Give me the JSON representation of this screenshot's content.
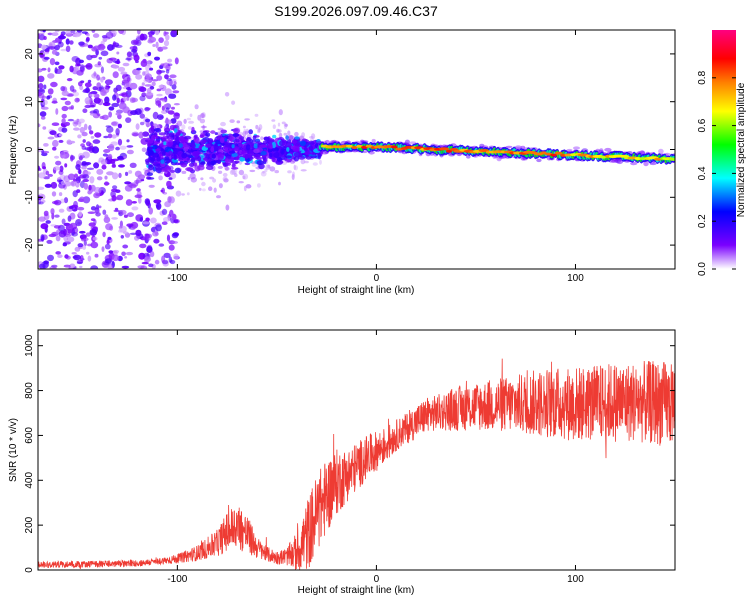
{
  "title": "S199.2026.097.09.46.C37",
  "chart_data": [
    {
      "type": "heatmap",
      "title": "S199.2026.097.09.46.C37",
      "xlabel": "Height of straight line (km)",
      "ylabel": "Frequency (Hz)",
      "xlim": [
        -170,
        150
      ],
      "ylim": [
        -25,
        25
      ],
      "xticks": [
        -100,
        0,
        100
      ],
      "xtick_labels": [
        "-100",
        "0",
        "100"
      ],
      "yticks": [
        -20,
        -10,
        0,
        10,
        20
      ],
      "ytick_labels": [
        "-20",
        "-10",
        "0",
        "10",
        "20"
      ],
      "colorbar": {
        "label": "Normalized spectral amplitude",
        "range": [
          0,
          1
        ],
        "ticks": [
          0,
          0.2,
          0.4,
          0.6,
          0.8
        ],
        "tick_labels": [
          "0.0",
          "0.2",
          "0.4",
          "0.6",
          "0.8"
        ],
        "colormap": "rainbow (white-violet-blue-cyan-green-yellow-orange-red-magenta)"
      },
      "features": [
        {
          "x_range": [
            -170,
            -100
          ],
          "description": "broadband noise spread over full frequency range",
          "amplitude": 0.1
        },
        {
          "x_range": [
            -115,
            -28
          ],
          "description": "energy concentrating toward 0 Hz, spread narrowing",
          "amplitude": 0.2
        },
        {
          "x_range": [
            -28,
            150
          ],
          "description": "narrow tone near 0 Hz drifting to about -2 Hz",
          "amplitude_peak": 0.85
        }
      ]
    },
    {
      "type": "line",
      "title": "",
      "xlabel": "Height of straight line (km)",
      "ylabel": "SNR (10 * v/v)",
      "xlim": [
        -170,
        150
      ],
      "ylim": [
        0,
        1070
      ],
      "xticks": [
        -100,
        0,
        100
      ],
      "xtick_labels": [
        "-100",
        "0",
        "100"
      ],
      "yticks": [
        0,
        200,
        400,
        600,
        800,
        1000
      ],
      "ytick_labels": [
        "0",
        "200",
        "400",
        "600",
        "800",
        "1000"
      ],
      "color": "#ee3b33",
      "series": [
        {
          "name": "SNR",
          "x": [
            -170,
            -160,
            -150,
            -140,
            -130,
            -120,
            -110,
            -100,
            -90,
            -80,
            -75,
            -70,
            -65,
            -60,
            -55,
            -50,
            -45,
            -40,
            -35,
            -30,
            -25,
            -20,
            -15,
            -10,
            -5,
            0,
            5,
            10,
            15,
            20,
            25,
            30,
            40,
            50,
            60,
            70,
            80,
            90,
            100,
            110,
            120,
            130,
            140,
            150
          ],
          "y": [
            25,
            25,
            26,
            27,
            28,
            30,
            38,
            50,
            75,
            120,
            170,
            200,
            160,
            100,
            70,
            55,
            60,
            80,
            150,
            250,
            330,
            390,
            420,
            460,
            500,
            530,
            560,
            600,
            630,
            660,
            690,
            700,
            720,
            730,
            735,
            740,
            745,
            745,
            740,
            745,
            750,
            750,
            745,
            740
          ],
          "noise_amplitude": [
            15,
            15,
            15,
            15,
            15,
            15,
            15,
            20,
            35,
            60,
            90,
            110,
            90,
            50,
            35,
            30,
            40,
            90,
            160,
            180,
            170,
            150,
            120,
            110,
            100,
            90,
            80,
            70,
            70,
            75,
            80,
            80,
            100,
            110,
            120,
            130,
            150,
            160,
            170,
            170,
            180,
            180,
            190,
            190
          ]
        }
      ]
    }
  ]
}
